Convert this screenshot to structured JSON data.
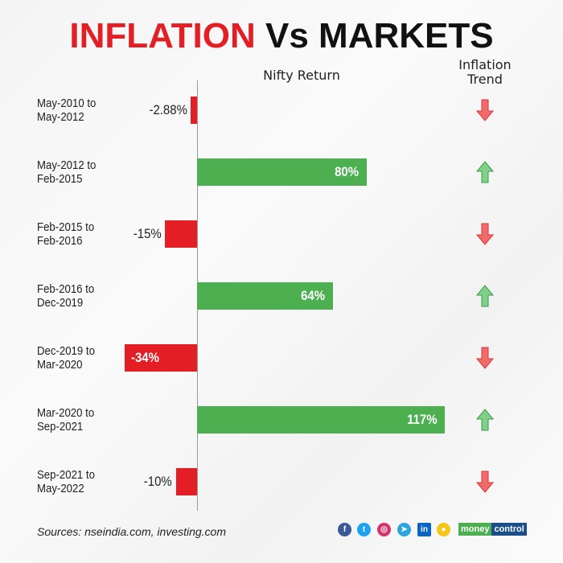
{
  "title": {
    "part1": "INFLATION",
    "part2": "Vs MARKETS"
  },
  "headers": {
    "nifty": "Nifty Return",
    "inflation_line1": "Inflation",
    "inflation_line2": "Trend"
  },
  "chart_data": {
    "type": "bar",
    "orientation": "horizontal",
    "title": "INFLATION Vs MARKETS",
    "categories": [
      [
        "May-2010 to",
        "May-2012"
      ],
      [
        "May-2012 to",
        "Feb-2015"
      ],
      [
        "Feb-2015 to",
        "Feb-2016"
      ],
      [
        "Feb-2016 to",
        "Dec-2019"
      ],
      [
        "Dec-2019 to",
        "Mar-2020"
      ],
      [
        "Mar-2020 to",
        "Sep-2021"
      ],
      [
        "Sep-2021 to",
        "May-2022"
      ]
    ],
    "series": [
      {
        "name": "Nifty Return",
        "values": [
          -2.88,
          80,
          -15,
          64,
          -34,
          117,
          -10
        ],
        "labels": [
          "-2.88%",
          "80%",
          "-15%",
          "64%",
          "-34%",
          "117%",
          "-10%"
        ]
      }
    ],
    "inflation_trend": [
      "down",
      "up",
      "down",
      "up",
      "down",
      "up",
      "down"
    ],
    "colors": {
      "positive": "#4caf50",
      "negative": "#e31e24",
      "up_arrow": "#7fd18a",
      "down_arrow": "#f26b6b"
    }
  },
  "footer": {
    "sources": "Sources: nseindia.com, investing.com",
    "brand1": "money",
    "brand2": "control",
    "social_icons": [
      "facebook-icon",
      "twitter-icon",
      "instagram-icon",
      "telegram-icon",
      "linkedin-icon",
      "koo-icon"
    ]
  }
}
